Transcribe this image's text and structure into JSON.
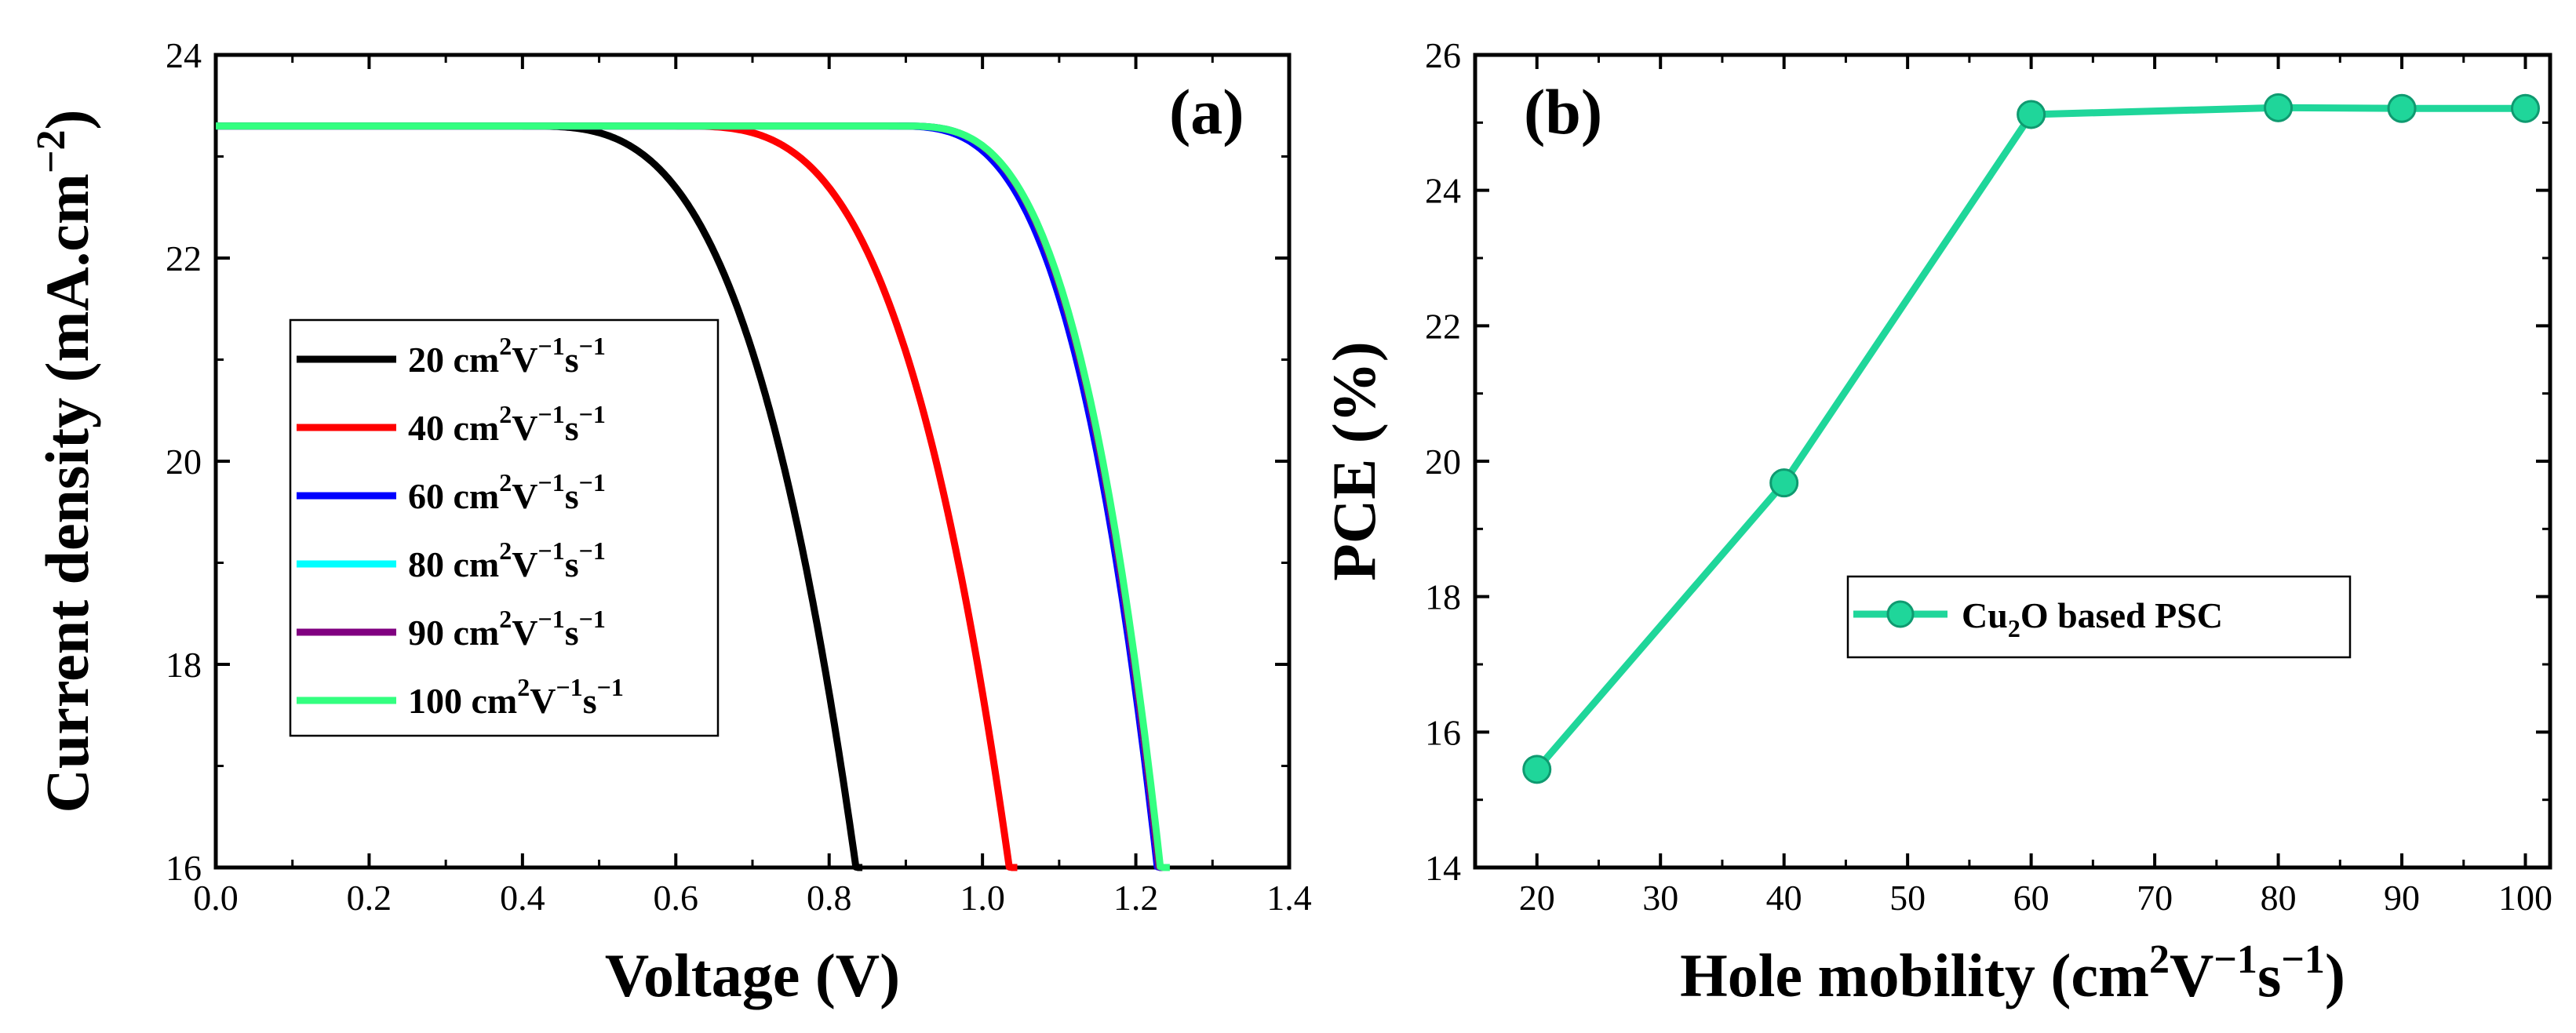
{
  "chart_data": [
    {
      "type": "line",
      "panel_label": "(a)",
      "xlabel": "Voltage (V)",
      "ylabel_main": "Current density (mA.cm",
      "ylabel_sup": "−2",
      "ylabel_close": ")",
      "xlim": [
        0.0,
        1.4
      ],
      "ylim": [
        16,
        24
      ],
      "xticks": [
        "0.0",
        "0.2",
        "0.4",
        "0.6",
        "0.8",
        "1.0",
        "1.2",
        "1.4"
      ],
      "yticks": [
        "16",
        "18",
        "20",
        "22",
        "24"
      ],
      "legend_position": "middle-left",
      "series": [
        {
          "name": "20",
          "unit": "cm",
          "color": "#000000",
          "jsc": 23.3,
          "voc": 0.835,
          "knee": 0.4
        },
        {
          "name": "40",
          "unit": "cm",
          "color": "#ff0000",
          "jsc": 23.3,
          "voc": 1.035,
          "knee": 0.6
        },
        {
          "name": "60",
          "unit": "cm",
          "color": "#0000ff",
          "jsc": 23.3,
          "voc": 1.228,
          "knee": 0.88
        },
        {
          "name": "80",
          "unit": "cm",
          "color": "#00ffff",
          "jsc": 23.3,
          "voc": 1.23,
          "knee": 0.89
        },
        {
          "name": "90",
          "unit": "cm",
          "color": "#800080",
          "jsc": 23.3,
          "voc": 1.23,
          "knee": 0.89
        },
        {
          "name": "100",
          "unit": "cm",
          "color": "#33ff80",
          "jsc": 23.3,
          "voc": 1.232,
          "knee": 0.89
        }
      ]
    },
    {
      "type": "line",
      "panel_label": "(b)",
      "xlabel_main": "Hole mobility (cm",
      "ylabel": "PCE (%)",
      "xlim": [
        15,
        102
      ],
      "ylim": [
        14,
        26
      ],
      "xticks": [
        "20",
        "30",
        "40",
        "50",
        "60",
        "70",
        "80",
        "90",
        "100"
      ],
      "yticks": [
        "14",
        "16",
        "18",
        "20",
        "22",
        "24",
        "26"
      ],
      "legend_label_pre": "Cu",
      "legend_label_sub": "2",
      "legend_label_post": "O based PSC",
      "legend_position": "middle-right",
      "color": "#1fd69a",
      "x": [
        20,
        40,
        60,
        80,
        90,
        100
      ],
      "y": [
        15.45,
        19.68,
        25.12,
        25.22,
        25.21,
        25.21
      ]
    }
  ],
  "colors": {
    "axis": "#000000",
    "marker_edge": "#0f9a70"
  }
}
